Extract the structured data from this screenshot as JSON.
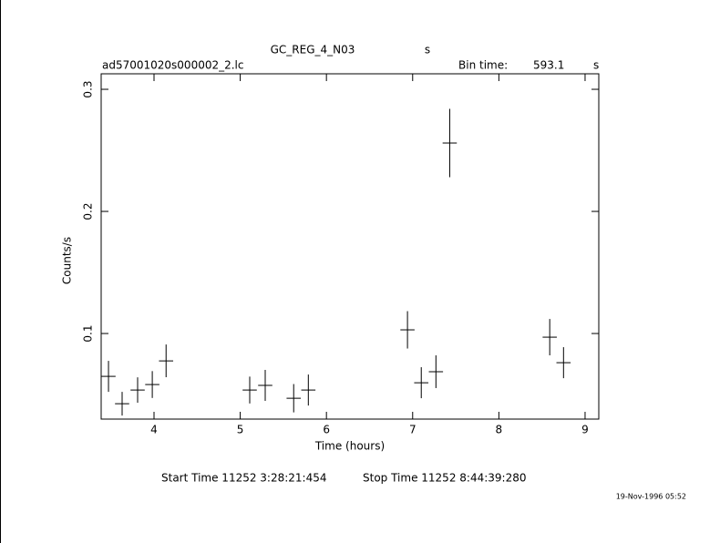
{
  "chart_data": {
    "type": "scatter",
    "title": "GC_REG_4_N03",
    "title_unit": "s",
    "subtitle": "ad57001020s000002_2.lc",
    "bin_time_label": "Bin time:",
    "bin_time": 593.1,
    "bin_time_unit": "s",
    "x_label": "Time (hours)",
    "y_label": "Counts/s",
    "start_time": "Start Time 11252  3:28:21:454",
    "stop_time": "Stop Time 11252  8:44:39:280",
    "timestamp": "19-Nov-1996 05:52",
    "xlim": [
      3.387,
      9.159
    ],
    "ylim": [
      0.0299,
      0.3127
    ],
    "xticks": [
      4,
      5,
      6,
      7,
      8,
      9
    ],
    "yticks": [
      0.1,
      0.2,
      0.3
    ],
    "series": [
      {
        "color": "#000000",
        "x": [
          3.472,
          3.63,
          3.81,
          3.98,
          4.14,
          5.11,
          5.29,
          5.62,
          5.79,
          6.94,
          7.1,
          7.27,
          7.43,
          8.59,
          8.75
        ],
        "y": [
          0.0649,
          0.0425,
          0.0537,
          0.0582,
          0.0776,
          0.0537,
          0.0575,
          0.047,
          0.0537,
          0.103,
          0.0597,
          0.0687,
          0.256,
          0.097,
          0.0761
        ],
        "xerr": [
          0.0824,
          0.0824,
          0.0824,
          0.0824,
          0.0824,
          0.0824,
          0.0824,
          0.0824,
          0.0824,
          0.0824,
          0.0824,
          0.0824,
          0.0824,
          0.0824,
          0.0824
        ],
        "yerr": [
          0.0127,
          0.0097,
          0.0104,
          0.011,
          0.0134,
          0.011,
          0.0127,
          0.0116,
          0.0127,
          0.0153,
          0.0127,
          0.0134,
          0.028,
          0.0149,
          0.0127
        ]
      }
    ]
  }
}
